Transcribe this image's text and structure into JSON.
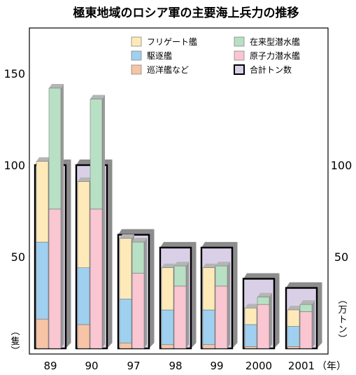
{
  "chart_data": {
    "type": "bar",
    "title": "極東地域のロシア軍の主要海上兵力の推移",
    "categories": [
      "89",
      "90",
      "97",
      "98",
      "99",
      "2000",
      "2001"
    ],
    "xlabel_unit": "（年）",
    "left_axis": {
      "label": "（隻）",
      "ticks": [
        "50",
        "100",
        "150"
      ],
      "tick_values": [
        50,
        100,
        150
      ],
      "range": [
        0,
        150
      ]
    },
    "right_axis": {
      "label": "（万トン）",
      "ticks": [
        "50",
        "100"
      ],
      "tick_values": [
        50,
        100
      ],
      "range": [
        0,
        150
      ]
    },
    "surface_series": [
      {
        "key": "jun",
        "name": "巡洋艦など",
        "color": "#f7c4a6",
        "values": [
          16,
          13,
          3,
          2,
          2,
          1,
          1
        ]
      },
      {
        "key": "kuchiku",
        "name": "駆逐艦",
        "color": "#9fd0f0",
        "values": [
          42,
          31,
          24,
          19,
          19,
          12,
          11
        ]
      },
      {
        "key": "frigate",
        "name": "フリゲート艦",
        "color": "#fdeab8",
        "values": [
          44,
          47,
          33,
          23,
          23,
          9,
          9
        ]
      }
    ],
    "sub_series": [
      {
        "key": "genshi",
        "name": "原子力潜水艦",
        "color": "#f9c6d2",
        "values": [
          76,
          76,
          41,
          34,
          34,
          24,
          20
        ]
      },
      {
        "key": "zairai",
        "name": "在来型潜水艦",
        "color": "#b8e0c4",
        "values": [
          66,
          60,
          17,
          11,
          11,
          4,
          4
        ]
      }
    ],
    "total_series": {
      "key": "total",
      "name": "合計トン数",
      "color": "#d9d0e8",
      "values": [
        100,
        100,
        62,
        55,
        55,
        38,
        33
      ]
    },
    "legend": [
      {
        "key": "frigate",
        "label": "フリゲート艦",
        "color": "#fdeab8"
      },
      {
        "key": "zairai",
        "label": "在来型潜水艦",
        "color": "#b8e0c4"
      },
      {
        "key": "kuchiku",
        "label": "駆逐艦",
        "color": "#9fd0f0"
      },
      {
        "key": "genshi",
        "label": "原子力潜水艦",
        "color": "#f9c6d2"
      },
      {
        "key": "jun",
        "label": "巡洋艦など",
        "color": "#f7c4a6"
      },
      {
        "key": "total",
        "label": "合計トン数",
        "color": "#d9d0e8"
      }
    ],
    "legend_placement": "top-center",
    "grid": false
  }
}
